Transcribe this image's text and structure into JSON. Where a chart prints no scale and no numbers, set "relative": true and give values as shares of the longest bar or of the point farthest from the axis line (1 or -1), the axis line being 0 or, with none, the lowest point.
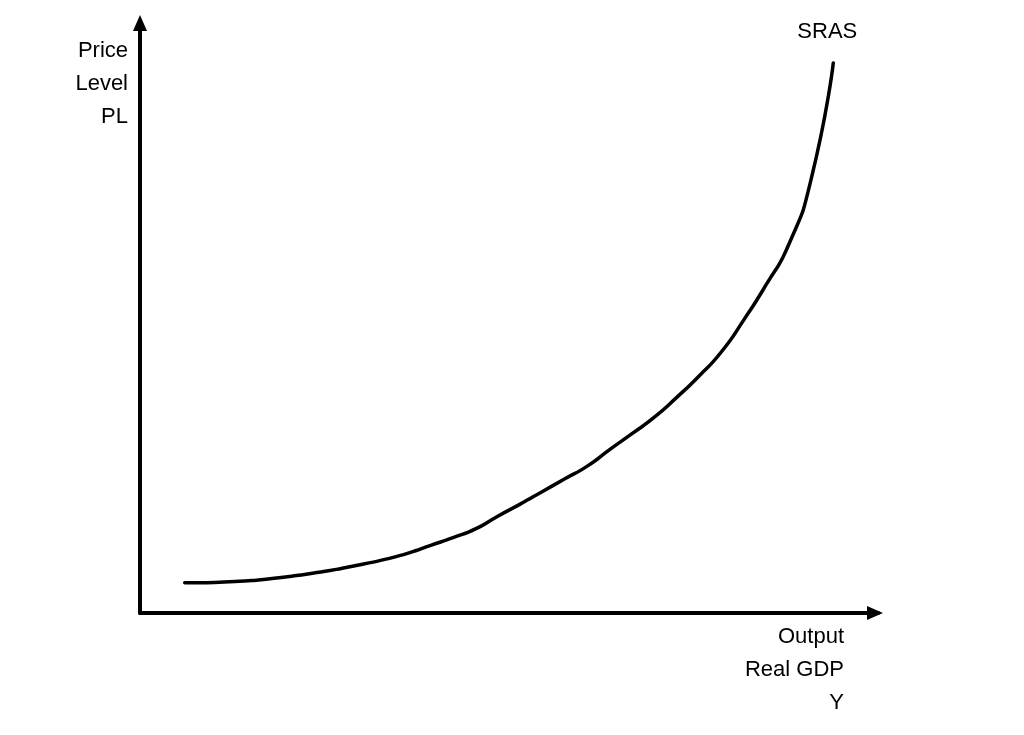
{
  "chart_data": {
    "type": "line",
    "relative": true,
    "xlabel": "Output\nReal GDP\nY",
    "ylabel": "Price\nLevel\nPL",
    "categories": [
      null,
      null,
      null,
      null,
      null,
      null,
      null,
      null,
      null,
      null,
      null,
      null,
      null,
      null,
      null,
      null,
      null,
      null,
      null,
      null,
      null,
      null,
      null,
      null,
      null,
      null,
      null,
      null,
      null,
      null,
      null,
      null,
      null,
      null
    ],
    "series": [
      {
        "name": "SRAS",
        "color": "#000000",
        "values": [
          null,
          null,
          0.055,
          0.055,
          0.057,
          0.059,
          0.063,
          0.068,
          0.074,
          0.081,
          0.089,
          0.098,
          0.109,
          0.123,
          0.137,
          0.153,
          0.176,
          0.198,
          0.221,
          0.244,
          0.267,
          0.297,
          0.326,
          0.356,
          0.392,
          0.431,
          0.475,
          0.533,
          0.597,
          0.669,
          0.787,
          1,
          null,
          null
        ]
      }
    ],
    "marker": "none",
    "line_style": "solid"
  }
}
